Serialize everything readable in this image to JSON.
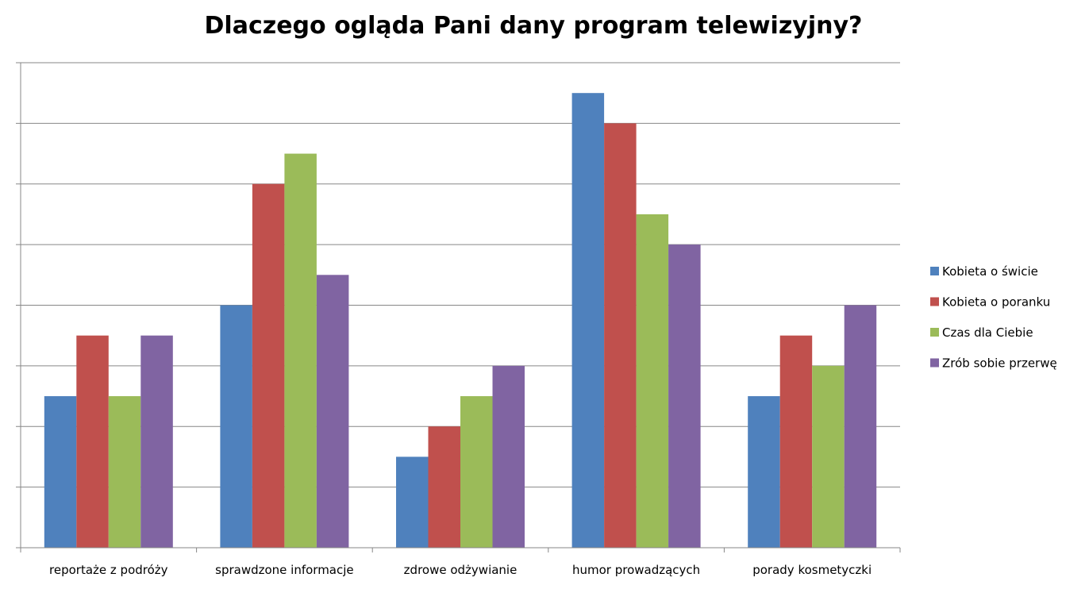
{
  "chart_data": {
    "type": "bar",
    "title": "Dlaczego ogląda Pani dany program telewizyjny?",
    "xlabel": "",
    "ylabel": "",
    "ylim": [
      0,
      8
    ],
    "y_tick_labels_visible": false,
    "grid": true,
    "legend_position": "right",
    "categories": [
      "reportaże z podróży",
      "sprawdzone informacje",
      "zdrowe odżywianie",
      "humor prowadzących",
      "porady kosmetyczki"
    ],
    "series": [
      {
        "name": "Kobieta o świcie",
        "color": "#4F81BD",
        "values": [
          2.5,
          4,
          1.5,
          7.5,
          2.5
        ]
      },
      {
        "name": "Kobieta o poranku",
        "color": "#C0504D",
        "values": [
          3.5,
          6,
          2,
          7,
          3.5
        ]
      },
      {
        "name": "Czas dla Ciebie",
        "color": "#9BBB59",
        "values": [
          2.5,
          6.5,
          2.5,
          5.5,
          3
        ]
      },
      {
        "name": "Zrób sobie przerwę",
        "color": "#8064A2",
        "values": [
          3.5,
          4.5,
          3,
          5,
          4
        ]
      }
    ]
  }
}
